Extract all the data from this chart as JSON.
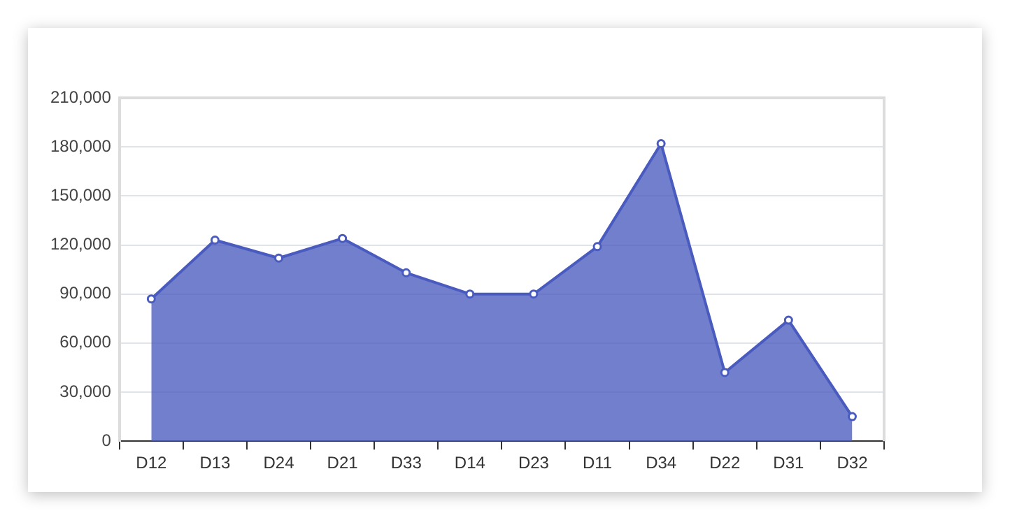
{
  "chart_data": {
    "type": "area",
    "categories": [
      "D12",
      "D13",
      "D24",
      "D21",
      "D33",
      "D14",
      "D23",
      "D11",
      "D34",
      "D22",
      "D31",
      "D32"
    ],
    "series": [
      {
        "color": "#4a5bbf",
        "values": [
          87000,
          123000,
          112000,
          124000,
          103000,
          90000,
          90000,
          119000,
          182000,
          42000,
          74000,
          15000
        ]
      }
    ],
    "ylim": [
      0,
      210000
    ],
    "yticks": [
      0,
      {
        "value": 30000,
        "label": "30,000"
      },
      {
        "value": 60000,
        "label": "60,000"
      },
      {
        "value": 90000,
        "label": "90,000"
      },
      {
        "value": 120000,
        "label": "120,000"
      },
      {
        "value": 150000,
        "label": "150,000"
      },
      {
        "value": 180000,
        "label": "180,000"
      },
      {
        "value": 210000,
        "label": "210,000"
      }
    ],
    "grid": "y",
    "legend": false,
    "marker": "circle"
  }
}
